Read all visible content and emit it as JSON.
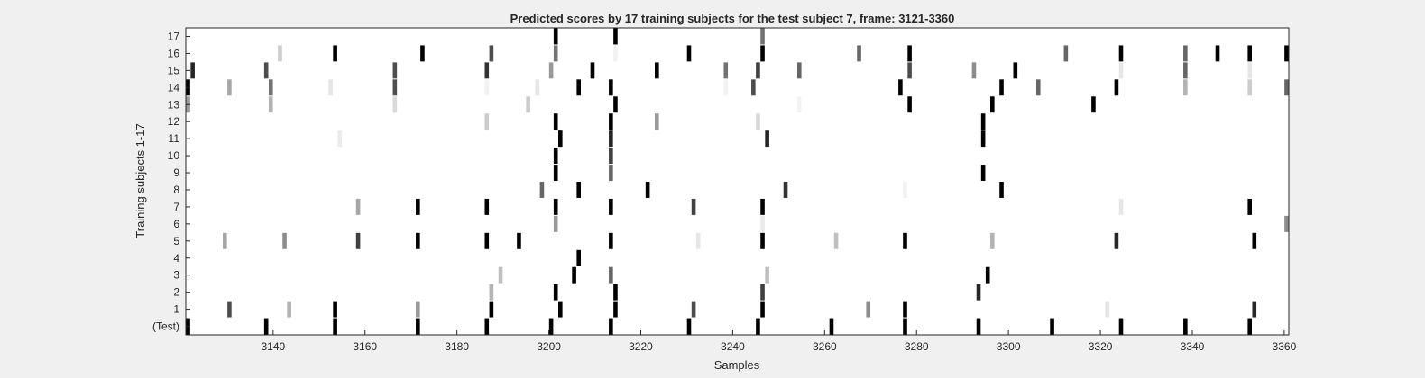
{
  "chart_data": {
    "type": "heatmap",
    "title": "Predicted scores by 17 training subjects for the test subject 7, frame: 3121-3360",
    "xlabel": "Samples",
    "ylabel": "Training subjects 1-17",
    "xlim": [
      3121,
      3360
    ],
    "x_ticks": [
      "3140",
      "3160",
      "3180",
      "3200",
      "3220",
      "3240",
      "3260",
      "3280",
      "3300",
      "3320",
      "3340",
      "3360"
    ],
    "y_tick_labels": [
      "(Test)",
      "1",
      "2",
      "3",
      "4",
      "5",
      "6",
      "7",
      "8",
      "9",
      "10",
      "11",
      "12",
      "13",
      "14",
      "15",
      "16",
      "17"
    ],
    "colormap": "white-to-black (0 = white, 1 = black)",
    "grid": false,
    "legend": "none",
    "rows": [
      {
        "label": "(Test)",
        "marks": [
          [
            3121,
            1
          ],
          [
            3138,
            1
          ],
          [
            3153,
            1
          ],
          [
            3171,
            1
          ],
          [
            3186,
            1
          ],
          [
            3200,
            1
          ],
          [
            3213,
            1
          ],
          [
            3230,
            1
          ],
          [
            3245,
            1
          ],
          [
            3261,
            1
          ],
          [
            3277,
            1
          ],
          [
            3293,
            1
          ],
          [
            3309,
            1
          ],
          [
            3324,
            1
          ],
          [
            3338,
            1
          ],
          [
            3352,
            1
          ]
        ]
      },
      {
        "label": "1",
        "marks": [
          [
            3130,
            0.7
          ],
          [
            3143,
            0.3
          ],
          [
            3153,
            1
          ],
          [
            3171,
            0.4
          ],
          [
            3187,
            1
          ],
          [
            3202,
            1
          ],
          [
            3214,
            1
          ],
          [
            3231,
            0.7
          ],
          [
            3246,
            1
          ],
          [
            3269,
            0.45
          ],
          [
            3277,
            1
          ],
          [
            3321,
            0.1
          ],
          [
            3353,
            0.85
          ]
        ]
      },
      {
        "label": "2",
        "marks": [
          [
            3187,
            0.3
          ],
          [
            3201,
            1
          ],
          [
            3214,
            1
          ],
          [
            3246,
            0.75
          ],
          [
            3293,
            0.85
          ]
        ]
      },
      {
        "label": "3",
        "marks": [
          [
            3189,
            0.25
          ],
          [
            3205,
            1
          ],
          [
            3213,
            0.6
          ],
          [
            3247,
            0.25
          ],
          [
            3295,
            1
          ]
        ]
      },
      {
        "label": "4",
        "marks": [
          [
            3206,
            1
          ]
        ]
      },
      {
        "label": "5",
        "marks": [
          [
            3129,
            0.35
          ],
          [
            3142,
            0.45
          ],
          [
            3158,
            0.75
          ],
          [
            3171,
            1
          ],
          [
            3186,
            1
          ],
          [
            3193,
            1
          ],
          [
            3213,
            1
          ],
          [
            3232,
            0.1
          ],
          [
            3246,
            1
          ],
          [
            3262,
            0.25
          ],
          [
            3277,
            1
          ],
          [
            3296,
            0.3
          ],
          [
            3323,
            0.85
          ],
          [
            3353,
            1
          ]
        ]
      },
      {
        "label": "6",
        "marks": [
          [
            3201,
            0.4
          ],
          [
            3246,
            0.08
          ],
          [
            3360,
            0.45
          ]
        ]
      },
      {
        "label": "7",
        "marks": [
          [
            3158,
            0.35
          ],
          [
            3171,
            1
          ],
          [
            3186,
            1
          ],
          [
            3201,
            1
          ],
          [
            3213,
            1
          ],
          [
            3231,
            0.75
          ],
          [
            3246,
            1
          ],
          [
            3324,
            0.1
          ],
          [
            3352,
            1
          ]
        ]
      },
      {
        "label": "8",
        "marks": [
          [
            3198,
            0.6
          ],
          [
            3206,
            1
          ],
          [
            3221,
            1
          ],
          [
            3251,
            0.8
          ],
          [
            3277,
            0.05
          ],
          [
            3298,
            1
          ]
        ]
      },
      {
        "label": "9",
        "marks": [
          [
            3201,
            1
          ],
          [
            3213,
            0.6
          ],
          [
            3294,
            1
          ]
        ]
      },
      {
        "label": "10",
        "marks": [
          [
            3201,
            1
          ],
          [
            3213,
            0.75
          ]
        ]
      },
      {
        "label": "11",
        "marks": [
          [
            3154,
            0.08
          ],
          [
            3202,
            1
          ],
          [
            3213,
            0.85
          ],
          [
            3247,
            0.85
          ],
          [
            3294,
            1
          ]
        ]
      },
      {
        "label": "12",
        "marks": [
          [
            3186,
            0.2
          ],
          [
            3201,
            1
          ],
          [
            3213,
            1
          ],
          [
            3223,
            0.4
          ],
          [
            3245,
            0.15
          ],
          [
            3294,
            1
          ]
        ]
      },
      {
        "label": "13",
        "marks": [
          [
            3121,
            0.4
          ],
          [
            3139,
            0.3
          ],
          [
            3166,
            0.15
          ],
          [
            3195,
            0.2
          ],
          [
            3214,
            1
          ],
          [
            3254,
            0.05
          ],
          [
            3278,
            1
          ],
          [
            3296,
            1
          ],
          [
            3318,
            1
          ]
        ]
      },
      {
        "label": "14",
        "marks": [
          [
            3121,
            1
          ],
          [
            3130,
            0.35
          ],
          [
            3139,
            0.55
          ],
          [
            3152,
            0.1
          ],
          [
            3166,
            0.7
          ],
          [
            3186,
            0.05
          ],
          [
            3197,
            0.1
          ],
          [
            3206,
            1
          ],
          [
            3213,
            1
          ],
          [
            3238,
            0.05
          ],
          [
            3244,
            0.7
          ],
          [
            3276,
            1
          ],
          [
            3298,
            1
          ],
          [
            3306,
            0.6
          ],
          [
            3323,
            1
          ],
          [
            3338,
            0.3
          ],
          [
            3352,
            0.2
          ],
          [
            3360,
            0.6
          ]
        ]
      },
      {
        "label": "15",
        "marks": [
          [
            3122,
            0.85
          ],
          [
            3138,
            0.7
          ],
          [
            3166,
            0.7
          ],
          [
            3186,
            0.8
          ],
          [
            3200,
            0.4
          ],
          [
            3209,
            1
          ],
          [
            3223,
            1
          ],
          [
            3238,
            0.55
          ],
          [
            3245,
            0.75
          ],
          [
            3254,
            0.6
          ],
          [
            3278,
            0.7
          ],
          [
            3292,
            0.45
          ],
          [
            3301,
            1
          ],
          [
            3324,
            0.1
          ],
          [
            3338,
            0.6
          ],
          [
            3352,
            0.1
          ]
        ]
      },
      {
        "label": "16",
        "marks": [
          [
            3141,
            0.2
          ],
          [
            3153,
            1
          ],
          [
            3172,
            1
          ],
          [
            3187,
            0.7
          ],
          [
            3201,
            0.55
          ],
          [
            3214,
            0.05
          ],
          [
            3230,
            1
          ],
          [
            3246,
            1
          ],
          [
            3267,
            0.6
          ],
          [
            3278,
            1
          ],
          [
            3312,
            0.6
          ],
          [
            3324,
            1
          ],
          [
            3338,
            0.6
          ],
          [
            3345,
            1
          ],
          [
            3352,
            1
          ],
          [
            3360,
            1
          ]
        ]
      },
      {
        "label": "17",
        "marks": [
          [
            3201,
            1
          ],
          [
            3214,
            1
          ],
          [
            3246,
            0.55
          ]
        ]
      }
    ]
  }
}
